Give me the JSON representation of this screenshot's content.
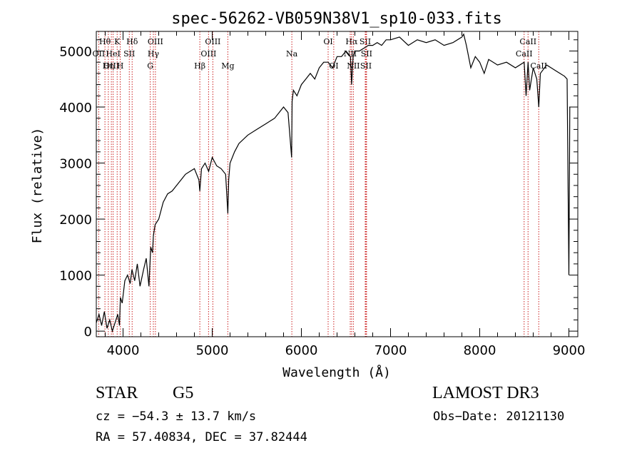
{
  "chart_data": {
    "type": "line",
    "title": "spec-56262-VB059N38V1_sp10-033.fits",
    "xlabel": "Wavelength (Å)",
    "ylabel": "Flux (relative)",
    "xlim": [
      3700,
      9100
    ],
    "ylim": [
      -100,
      5350
    ],
    "xticks": [
      4000,
      5000,
      6000,
      7000,
      8000,
      9000
    ],
    "yticks": [
      0,
      1000,
      2000,
      3000,
      4000,
      5000
    ],
    "xtick_labels": [
      "4000",
      "5000",
      "6000",
      "7000",
      "8000",
      "9000"
    ],
    "ytick_labels": [
      "0",
      "1000",
      "2000",
      "3000",
      "4000",
      "5000"
    ],
    "series": [
      {
        "name": "spectrum",
        "x": [
          3700,
          3730,
          3760,
          3790,
          3820,
          3850,
          3880,
          3910,
          3940,
          3960,
          3970,
          3990,
          4020,
          4050,
          4080,
          4100,
          4130,
          4160,
          4190,
          4230,
          4260,
          4290,
          4310,
          4330,
          4340,
          4360,
          4400,
          4450,
          4500,
          4550,
          4600,
          4650,
          4700,
          4750,
          4800,
          4850,
          4861,
          4880,
          4920,
          4960,
          5000,
          5050,
          5100,
          5150,
          5175,
          5185,
          5200,
          5250,
          5300,
          5400,
          5500,
          5600,
          5700,
          5800,
          5850,
          5890,
          5896,
          5910,
          5950,
          6000,
          6050,
          6100,
          6150,
          6200,
          6250,
          6300,
          6350,
          6400,
          6450,
          6500,
          6550,
          6563,
          6580,
          6600,
          6650,
          6700,
          6750,
          6800,
          6850,
          6900,
          6950,
          7000,
          7100,
          7200,
          7300,
          7400,
          7500,
          7600,
          7700,
          7800,
          7820,
          7850,
          7900,
          7950,
          8000,
          8050,
          8100,
          8200,
          8300,
          8400,
          8498,
          8520,
          8542,
          8560,
          8600,
          8640,
          8662,
          8680,
          8750,
          8800,
          8850,
          8900,
          8950,
          8980,
          9000,
          9010
        ],
        "y": [
          150,
          300,
          100,
          350,
          50,
          200,
          0,
          150,
          300,
          100,
          600,
          500,
          900,
          1000,
          850,
          1100,
          900,
          1200,
          800,
          1100,
          1300,
          800,
          1500,
          1400,
          1700,
          1900,
          2000,
          2300,
          2450,
          2500,
          2600,
          2700,
          2800,
          2850,
          2900,
          2700,
          2500,
          2900,
          3000,
          2850,
          3100,
          2950,
          2900,
          2800,
          2100,
          2700,
          3000,
          3200,
          3350,
          3500,
          3600,
          3700,
          3800,
          4000,
          3900,
          3100,
          4100,
          4300,
          4200,
          4400,
          4500,
          4600,
          4500,
          4700,
          4800,
          4800,
          4700,
          4900,
          4900,
          5000,
          4900,
          4400,
          4900,
          5000,
          5000,
          5050,
          5100,
          5100,
          5150,
          5100,
          5200,
          5200,
          5250,
          5100,
          5200,
          5150,
          5200,
          5100,
          5150,
          5250,
          5300,
          5100,
          4700,
          4900,
          4800,
          4600,
          4850,
          4750,
          4800,
          4700,
          4800,
          4200,
          4800,
          4300,
          4700,
          4500,
          4000,
          4600,
          4750,
          4700,
          4650,
          4600,
          4550,
          4500,
          1000,
          4000
        ]
      }
    ],
    "line_markers": [
      {
        "label": "Hθ",
        "x": 3797,
        "row": 0
      },
      {
        "label": "OII",
        "x": 3727,
        "row": 1
      },
      {
        "label": "OIII",
        "x": 3869,
        "row": 2
      },
      {
        "label": "Hη",
        "x": 3835,
        "row": 2
      },
      {
        "label": "K",
        "x": 3934,
        "row": 0
      },
      {
        "label": "H",
        "x": 3968,
        "row": 2
      },
      {
        "label": "HeI",
        "x": 3889,
        "row": 1
      },
      {
        "label": "SII",
        "x": 4070,
        "row": 1
      },
      {
        "label": "Hδ",
        "x": 4102,
        "row": 0
      },
      {
        "label": "OIII",
        "x": 4363,
        "row": 0
      },
      {
        "label": "Hγ",
        "x": 4340,
        "row": 1
      },
      {
        "label": "G",
        "x": 4305,
        "row": 2
      },
      {
        "label": "Hβ",
        "x": 4861,
        "row": 2
      },
      {
        "label": "OIII",
        "x": 5007,
        "row": 0
      },
      {
        "label": "OIII",
        "x": 4959,
        "row": 1
      },
      {
        "label": "Mg",
        "x": 5175,
        "row": 2
      },
      {
        "label": "Na",
        "x": 5893,
        "row": 1
      },
      {
        "label": "OI",
        "x": 6300,
        "row": 0
      },
      {
        "label": "OI",
        "x": 6363,
        "row": 2
      },
      {
        "label": "Hα",
        "x": 6563,
        "row": 0
      },
      {
        "label": "SII",
        "x": 6716,
        "row": 0
      },
      {
        "label": "NII",
        "x": 6548,
        "row": 1
      },
      {
        "label": "SII",
        "x": 6731,
        "row": 1
      },
      {
        "label": "NII",
        "x": 6583,
        "row": 2
      },
      {
        "label": "SII",
        "x": 6724,
        "row": 2
      },
      {
        "label": "CaII",
        "x": 8542,
        "row": 0
      },
      {
        "label": "CaII",
        "x": 8498,
        "row": 1
      },
      {
        "label": "CaII",
        "x": 8662,
        "row": 2
      }
    ]
  },
  "info": {
    "object_class": "STAR",
    "subclass": "G5",
    "survey": "LAMOST DR3",
    "cz": "cz = −54.3 ± 13.7 km/s",
    "obs_date": "Obs−Date: 20121130",
    "radec": "RA =  57.40834, DEC =  37.82444"
  },
  "colors": {
    "spectrum": "#000000",
    "marker_line": "#cc2222",
    "axes": "#000000"
  }
}
